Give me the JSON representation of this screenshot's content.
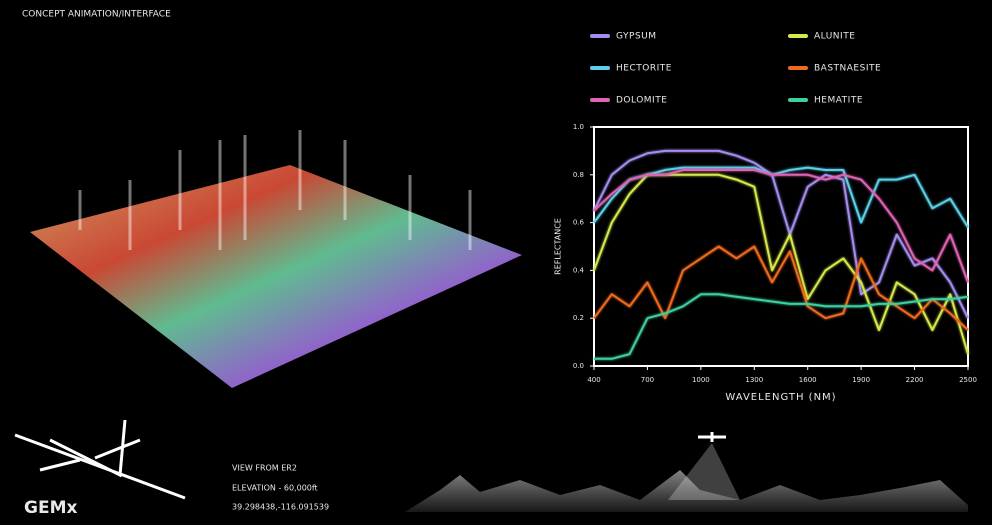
{
  "header": {
    "title": "CONCEPT ANIMATION/INTERFACE"
  },
  "info": {
    "view": "VIEW FROM ER2",
    "elevation": "ELEVATION - 60,000ft",
    "coordinates": "39.298438,-116.091539",
    "logo": "GEMx"
  },
  "chart_data": {
    "type": "line",
    "x_label": "WAVELENGTH (NM)",
    "y_label": "REFLECTANCE",
    "x": [
      400,
      500,
      600,
      700,
      800,
      900,
      1000,
      1100,
      1200,
      1300,
      1400,
      1500,
      1600,
      1700,
      1800,
      1900,
      2000,
      2100,
      2200,
      2300,
      2400,
      2500
    ],
    "xlim": [
      400,
      2500
    ],
    "xticks": [
      400,
      700,
      1000,
      1300,
      1600,
      1900,
      2200,
      2500
    ],
    "ylim": [
      0,
      1
    ],
    "yticks": [
      {
        "value": 0,
        "label": "0.0"
      },
      0.2,
      0.4,
      0.6,
      0.8,
      {
        "value": 1,
        "label": "1.0"
      }
    ],
    "series": [
      {
        "name": "GYPSUM",
        "color": "#a58cf0",
        "values": [
          0.65,
          0.8,
          0.86,
          0.89,
          0.9,
          0.9,
          0.9,
          0.9,
          0.88,
          0.85,
          0.8,
          0.55,
          0.75,
          0.8,
          0.78,
          0.3,
          0.35,
          0.55,
          0.42,
          0.45,
          0.35,
          0.2
        ]
      },
      {
        "name": "ALUNITE",
        "color": "#d6e84a",
        "values": [
          0.4,
          0.6,
          0.72,
          0.8,
          0.8,
          0.8,
          0.8,
          0.8,
          0.78,
          0.75,
          0.4,
          0.55,
          0.28,
          0.4,
          0.45,
          0.35,
          0.15,
          0.35,
          0.3,
          0.15,
          0.3,
          0.05
        ]
      },
      {
        "name": "HECTORITE",
        "color": "#5ad0e8",
        "values": [
          0.6,
          0.7,
          0.78,
          0.8,
          0.82,
          0.83,
          0.83,
          0.83,
          0.83,
          0.83,
          0.8,
          0.82,
          0.83,
          0.82,
          0.82,
          0.6,
          0.78,
          0.78,
          0.8,
          0.66,
          0.7,
          0.58
        ]
      },
      {
        "name": "BASTNAESITE",
        "color": "#f06a1e",
        "values": [
          0.2,
          0.3,
          0.25,
          0.35,
          0.2,
          0.4,
          0.45,
          0.5,
          0.45,
          0.5,
          0.35,
          0.48,
          0.25,
          0.2,
          0.22,
          0.45,
          0.3,
          0.25,
          0.2,
          0.28,
          0.22,
          0.15
        ]
      },
      {
        "name": "DOLOMITE",
        "color": "#e062b4",
        "values": [
          0.65,
          0.72,
          0.78,
          0.8,
          0.8,
          0.82,
          0.82,
          0.82,
          0.82,
          0.82,
          0.8,
          0.8,
          0.8,
          0.78,
          0.8,
          0.78,
          0.7,
          0.6,
          0.45,
          0.4,
          0.55,
          0.35
        ]
      },
      {
        "name": "HEMATITE",
        "color": "#3ccfa0",
        "values": [
          0.03,
          0.03,
          0.05,
          0.2,
          0.22,
          0.25,
          0.3,
          0.3,
          0.29,
          0.28,
          0.27,
          0.26,
          0.26,
          0.25,
          0.25,
          0.25,
          0.26,
          0.26,
          0.27,
          0.28,
          0.28,
          0.29
        ]
      }
    ]
  }
}
